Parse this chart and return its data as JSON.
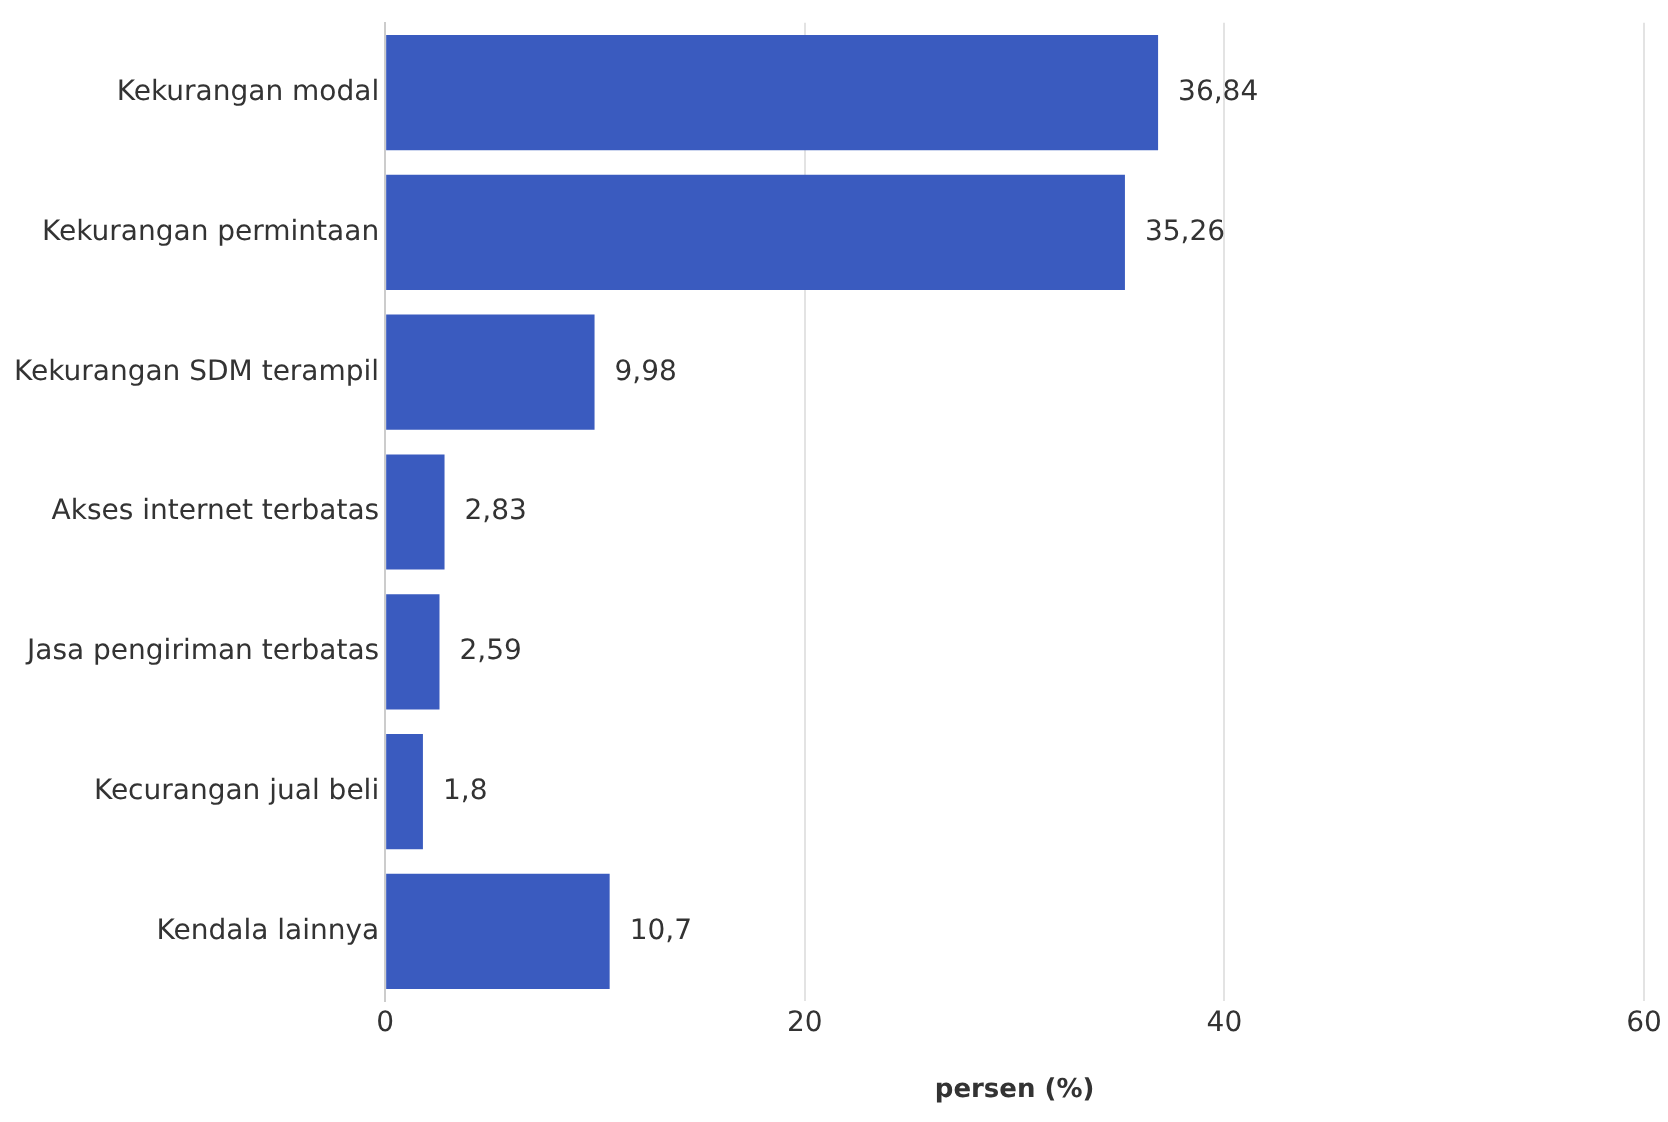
{
  "chart_data": {
    "type": "bar",
    "orientation": "horizontal",
    "xlabel": "persen (%)",
    "categories": [
      "Kekurangan modal",
      "Kekurangan permintaan",
      "Kekurangan SDM terampil",
      "Akses internet terbatas",
      "Jasa pengiriman terbatas",
      "Kecurangan jual beli",
      "Kendala lainnya"
    ],
    "values": [
      36.84,
      35.26,
      9.98,
      2.83,
      2.59,
      1.8,
      10.7
    ],
    "value_labels": [
      "36,84",
      "35,26",
      "9,98",
      "2,83",
      "2,59",
      "1,8",
      "10,7"
    ],
    "color": "#3a5bbf",
    "xlim": [
      0,
      60
    ],
    "xticks": [
      0,
      20,
      40,
      60
    ],
    "grid": "x",
    "legend": false
  }
}
